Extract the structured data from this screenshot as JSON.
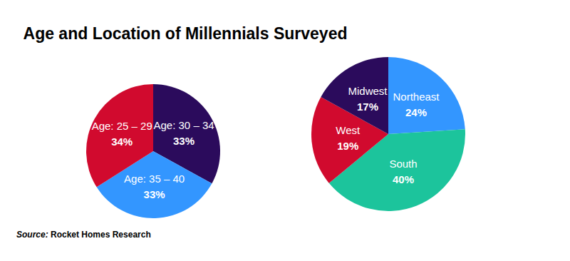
{
  "title": "Age and Location of Millennials Surveyed",
  "source": {
    "label": "Source:",
    "text": "Rocket Homes Research"
  },
  "chart_data": [
    {
      "type": "pie",
      "categories": [
        "Age: 30 – 34",
        "Age: 35 – 40",
        "Age: 25 – 29"
      ],
      "values": [
        33,
        33,
        34
      ],
      "value_labels": [
        "33%",
        "33%",
        "34%"
      ],
      "colors": [
        "#2b0b5c",
        "#3396ff",
        "#d10a2e"
      ],
      "data_labels": true
    },
    {
      "type": "pie",
      "categories": [
        "Northeast",
        "South",
        "West",
        "Midwest"
      ],
      "values": [
        24,
        40,
        19,
        17
      ],
      "value_labels": [
        "24%",
        "40%",
        "19%",
        "17%"
      ],
      "colors": [
        "#3396ff",
        "#1cc49c",
        "#d10a2e",
        "#2b0b5c"
      ],
      "data_labels": true
    }
  ]
}
